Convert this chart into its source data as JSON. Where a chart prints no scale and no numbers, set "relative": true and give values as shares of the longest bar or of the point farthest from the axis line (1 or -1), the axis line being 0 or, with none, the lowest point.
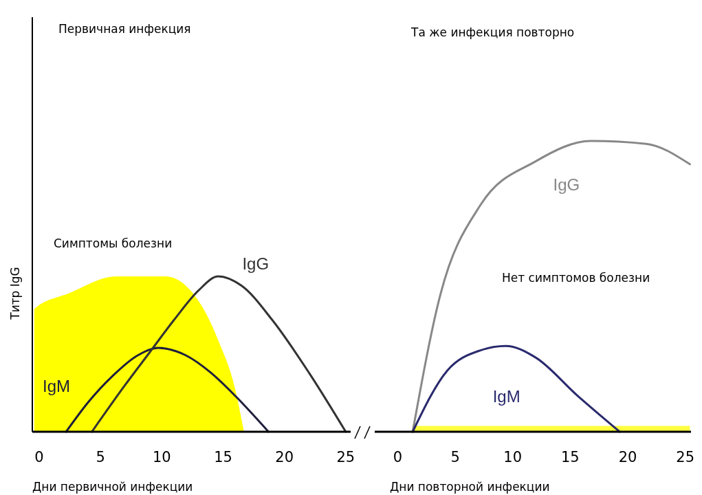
{
  "chart_data": [
    {
      "type": "line",
      "relative": true,
      "ylabel": "Титр IgG",
      "xlabel": "Дни первичной инфекции",
      "xlim": [
        -0.56,
        25.4
      ],
      "xticks": [
        0,
        5,
        10,
        15,
        20,
        25
      ],
      "tick_labels": "x",
      "line_style": "solid",
      "series": [
        {
          "type": "area",
          "color": "#ffff00",
          "x": [
            -0.4,
            -0.4,
            2.4,
            6.3,
            10.3,
            13.1,
            14.7,
            15.9,
            16.7
          ],
          "values": [
            0,
            0.79,
            0.89,
            1,
            1,
            0.83,
            0.57,
            0.3,
            0
          ]
        },
        {
          "name": "IgM",
          "color": "#1e1e3c",
          "x": [
            2.2,
            4,
            6,
            8,
            9.7,
            12,
            14,
            16,
            18.7
          ],
          "values": [
            0,
            0.19,
            0.36,
            0.49,
            0.54,
            0.49,
            0.38,
            0.23,
            0
          ]
        },
        {
          "name": "IgG",
          "color": "#333333",
          "x": [
            4.3,
            7,
            9,
            11,
            13,
            14.6,
            16.5,
            19,
            22,
            25
          ],
          "values": [
            0,
            0.3,
            0.51,
            0.72,
            0.91,
            1,
            0.94,
            0.72,
            0.38,
            0
          ]
        }
      ],
      "annotations": [
        "Первичная инфекция",
        "Симптомы болезни"
      ]
    },
    {
      "type": "line",
      "relative": true,
      "xlabel": "Дни повторной инфекции",
      "xlim": [
        -2.0,
        25.5
      ],
      "xticks": [
        0,
        5,
        10,
        15,
        20,
        25
      ],
      "tick_labels": "x",
      "line_style": "solid",
      "series": [
        {
          "type": "area",
          "color": "#ffff40",
          "x": [
            1.3,
            25.4
          ],
          "values": [
            0.02,
            0.02
          ]
        },
        {
          "name": "IgG",
          "color": "#888888",
          "x": [
            1.3,
            3.7,
            7.2,
            12.0,
            16.8,
            21.6,
            25.4
          ],
          "values": [
            0,
            0.47,
            0.78,
            0.93,
            1,
            0.99,
            0.92
          ]
        },
        {
          "name": "IgM",
          "color": "#2a2a6e",
          "x": [
            1.3,
            4.3,
            7.2,
            9.4,
            12.0,
            15.6,
            19.3
          ],
          "values": [
            0,
            0.21,
            0.28,
            0.295,
            0.255,
            0.125,
            0
          ]
        }
      ],
      "annotations": [
        "Та же инфекция повторно",
        "Нет симптомов болезни"
      ]
    }
  ]
}
